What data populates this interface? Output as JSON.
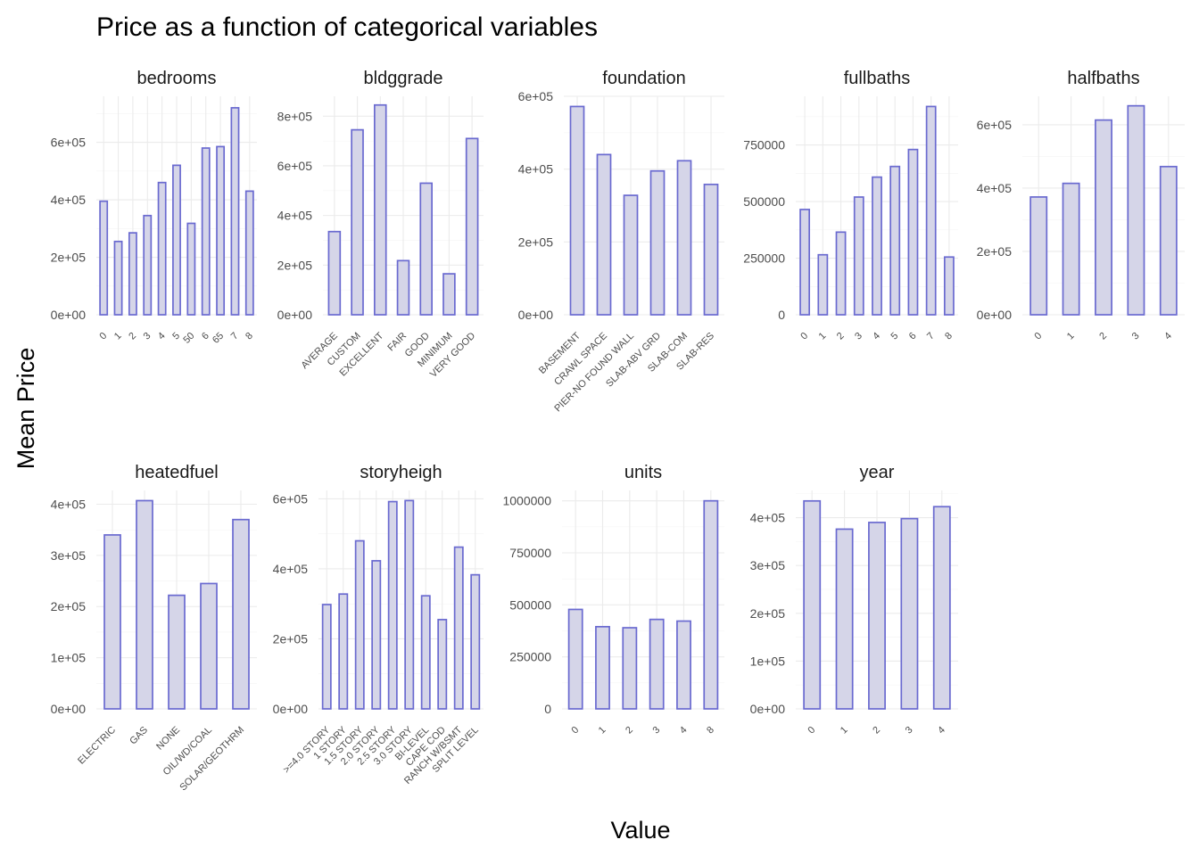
{
  "title": "Price as a function of categorical variables",
  "xlabel": "Value",
  "ylabel": "Mean Price",
  "colors": {
    "bar_fill": "#d5d5e8",
    "bar_stroke": "#6a6ad0",
    "grid": "#ebebeb"
  },
  "chart_data": [
    {
      "type": "bar",
      "title": "bedrooms",
      "categories": [
        "0",
        "1",
        "2",
        "3",
        "4",
        "5",
        "50",
        "6",
        "65",
        "7",
        "8"
      ],
      "values": [
        395000,
        255000,
        285000,
        345000,
        460000,
        520000,
        318000,
        580000,
        585000,
        720000,
        430000
      ],
      "ylim": [
        0,
        760000
      ],
      "yticks": [
        0,
        200000,
        400000,
        600000
      ],
      "ytick_labels": [
        "0e+00",
        "2e+05",
        "4e+05",
        "6e+05"
      ],
      "xtick_angle": 45,
      "grid": true
    },
    {
      "type": "bar",
      "title": "bldggrade",
      "categories": [
        "AVERAGE",
        "CUSTOM",
        "EXCELLENT",
        "FAIR",
        "GOOD",
        "MINIMUM",
        "VERY GOOD"
      ],
      "values": [
        335000,
        745000,
        845000,
        218000,
        530000,
        165000,
        710000
      ],
      "ylim": [
        0,
        880000
      ],
      "yticks": [
        0,
        200000,
        400000,
        600000,
        800000
      ],
      "ytick_labels": [
        "0e+00",
        "2e+05",
        "4e+05",
        "6e+05",
        "8e+05"
      ],
      "xtick_angle": 45,
      "grid": true
    },
    {
      "type": "bar",
      "title": "foundation",
      "categories": [
        "BASEMENT",
        "CRAWL SPACE",
        "PIER-NO FOUND WALL",
        "SLAB-ABV GRD",
        "SLAB-COM",
        "SLAB-RES"
      ],
      "values": [
        572000,
        440000,
        328000,
        395000,
        423000,
        358000
      ],
      "ylim": [
        0,
        600000
      ],
      "yticks": [
        0,
        200000,
        400000,
        600000
      ],
      "ytick_labels": [
        "0e+00",
        "2e+05",
        "4e+05",
        "6e+05"
      ],
      "xtick_angle": 45,
      "grid": true
    },
    {
      "type": "bar",
      "title": "fullbaths",
      "categories": [
        "0",
        "1",
        "2",
        "3",
        "4",
        "5",
        "6",
        "7",
        "8"
      ],
      "values": [
        465000,
        265000,
        365000,
        520000,
        608000,
        655000,
        730000,
        920000,
        255000
      ],
      "ylim": [
        0,
        965000
      ],
      "yticks": [
        0,
        250000,
        500000,
        750000
      ],
      "ytick_labels": [
        "0",
        "250000",
        "500000",
        "750000"
      ],
      "xtick_angle": 45,
      "grid": true
    },
    {
      "type": "bar",
      "title": "halfbaths",
      "categories": [
        "0",
        "1",
        "2",
        "3",
        "4"
      ],
      "values": [
        372000,
        415000,
        615000,
        660000,
        468000
      ],
      "ylim": [
        0,
        690000
      ],
      "yticks": [
        0,
        200000,
        400000,
        600000
      ],
      "ytick_labels": [
        "0e+00",
        "2e+05",
        "4e+05",
        "6e+05"
      ],
      "xtick_angle": 45,
      "grid": true
    },
    {
      "type": "bar",
      "title": "heatedfuel",
      "categories": [
        "ELECTRIC",
        "GAS",
        "NONE",
        "OIL/WD/COAL",
        "SOLAR/GEOTHRM"
      ],
      "values": [
        340000,
        407000,
        222000,
        245000,
        370000
      ],
      "ylim": [
        0,
        427000
      ],
      "yticks": [
        0,
        100000,
        200000,
        300000,
        400000
      ],
      "ytick_labels": [
        "0e+00",
        "1e+05",
        "2e+05",
        "3e+05",
        "4e+05"
      ],
      "xtick_angle": 45,
      "grid": true
    },
    {
      "type": "bar",
      "title": "storyheigh",
      "categories": [
        ">=4.0 STORY",
        "1 STORY",
        "1.5 STORY",
        "2.0 STORY",
        "2.5 STORY",
        "3.0 STORY",
        "BI-LEVEL",
        "CAPE COD",
        "RANCH W/BSMT",
        "SPLIT LEVEL"
      ],
      "values": [
        298000,
        328000,
        480000,
        423000,
        592000,
        595000,
        323000,
        255000,
        462000,
        383000
      ],
      "ylim": [
        0,
        624000
      ],
      "yticks": [
        0,
        200000,
        400000,
        600000
      ],
      "ytick_labels": [
        "0e+00",
        "2e+05",
        "4e+05",
        "6e+05"
      ],
      "xtick_angle": 45,
      "grid": true
    },
    {
      "type": "bar",
      "title": "units",
      "categories": [
        "0",
        "1",
        "2",
        "3",
        "4",
        "8"
      ],
      "values": [
        478000,
        395000,
        390000,
        430000,
        422000,
        1000000
      ],
      "ylim": [
        0,
        1050000
      ],
      "yticks": [
        0,
        250000,
        500000,
        750000,
        1000000
      ],
      "ytick_labels": [
        "0",
        "250000",
        "500000",
        "750000",
        "1000000"
      ],
      "xtick_angle": 45,
      "grid": true
    },
    {
      "type": "bar",
      "title": "year",
      "categories": [
        "0",
        "1",
        "2",
        "3",
        "4"
      ],
      "values": [
        435000,
        376000,
        390000,
        398000,
        423000
      ],
      "ylim": [
        0,
        457000
      ],
      "yticks": [
        0,
        100000,
        200000,
        300000,
        400000
      ],
      "ytick_labels": [
        "0e+00",
        "1e+05",
        "2e+05",
        "3e+05",
        "4e+05"
      ],
      "xtick_angle": 45,
      "grid": true
    }
  ]
}
